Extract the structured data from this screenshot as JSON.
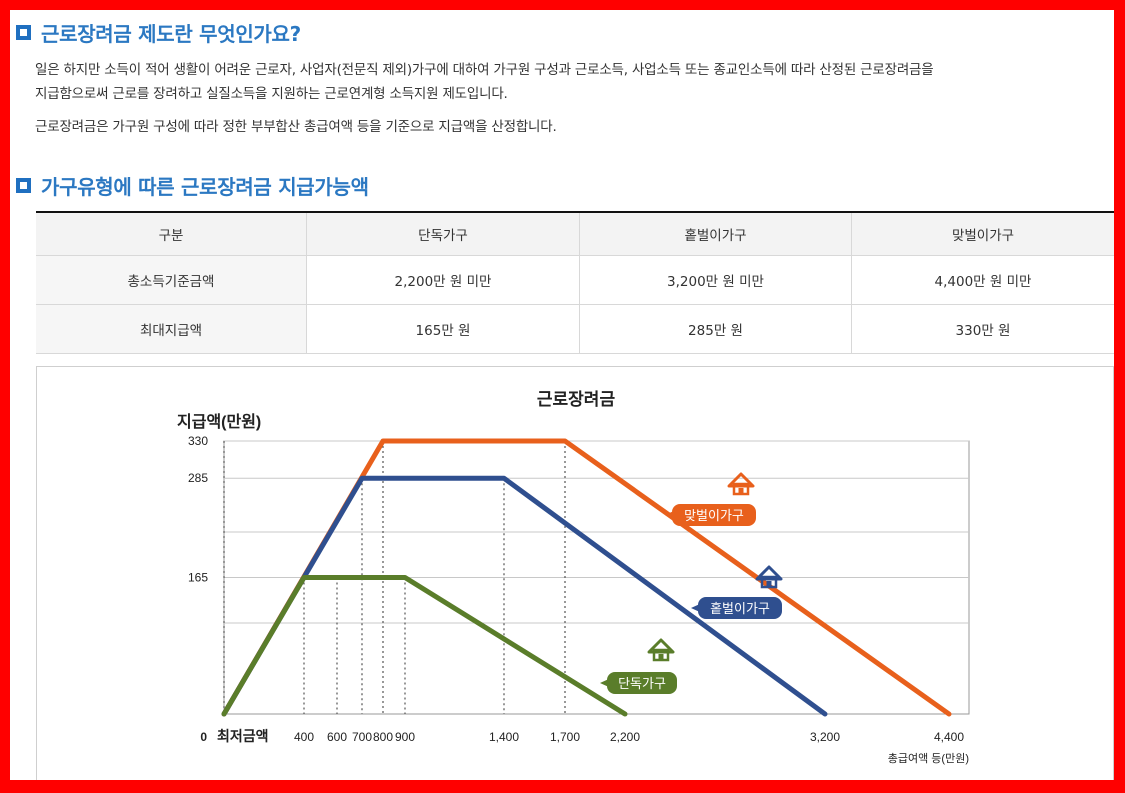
{
  "section1": {
    "title": "근로장려금 제도란 무엇인가요?",
    "para1_line1": "일은 하지만 소득이 적어 생활이 어려운 근로자, 사업자(전문직 제외)가구에 대하여 가구원 구성과 근로소득, 사업소득 또는 종교인소득에 따라 산정된 근로장려금을",
    "para1_line2": "지급함으로써 근로를 장려하고 실질소득을 지원하는 근로연계형 소득지원 제도입니다.",
    "para2": "근로장려금은 가구원 구성에 따라 정한 부부합산 총급여액 등을 기준으로 지급액을 산정합니다."
  },
  "section2": {
    "title": "가구유형에 따른 근로장려금 지급가능액",
    "table": {
      "headers": [
        "구분",
        "단독가구",
        "홑벌이가구",
        "맞벌이가구"
      ],
      "rows": [
        [
          "총소득기준금액",
          "2,200만 원 미만",
          "3,200만 원 미만",
          "4,400만 원 미만"
        ],
        [
          "최대지급액",
          "165만 원",
          "285만 원",
          "330만 원"
        ]
      ]
    }
  },
  "chart_data": {
    "type": "line",
    "title": "근로장려금",
    "ylabel": "지급액(만원)",
    "xlabel": "총급여액 등(만원)",
    "x_origin_label": "최저금액",
    "y_ticks": [
      "0",
      "165",
      "285",
      "330"
    ],
    "x_ticks": [
      "400",
      "600",
      "700",
      "800",
      "900",
      "1,400",
      "1,700",
      "2,200",
      "3,200",
      "4,400"
    ],
    "xlim": [
      0,
      4400
    ],
    "ylim": [
      0,
      330
    ],
    "grid": true,
    "series": [
      {
        "name": "맞벌이가구",
        "color": "#e8601c",
        "x": [
          0,
          800,
          1700,
          4400
        ],
        "y": [
          0,
          330,
          330,
          0
        ]
      },
      {
        "name": "홑벌이가구",
        "color": "#2f4f8f",
        "x": [
          0,
          700,
          1400,
          3200
        ],
        "y": [
          0,
          285,
          285,
          0
        ]
      },
      {
        "name": "단독가구",
        "color": "#5a7d2a",
        "x": [
          0,
          400,
          900,
          2200
        ],
        "y": [
          0,
          165,
          165,
          0
        ]
      }
    ]
  }
}
